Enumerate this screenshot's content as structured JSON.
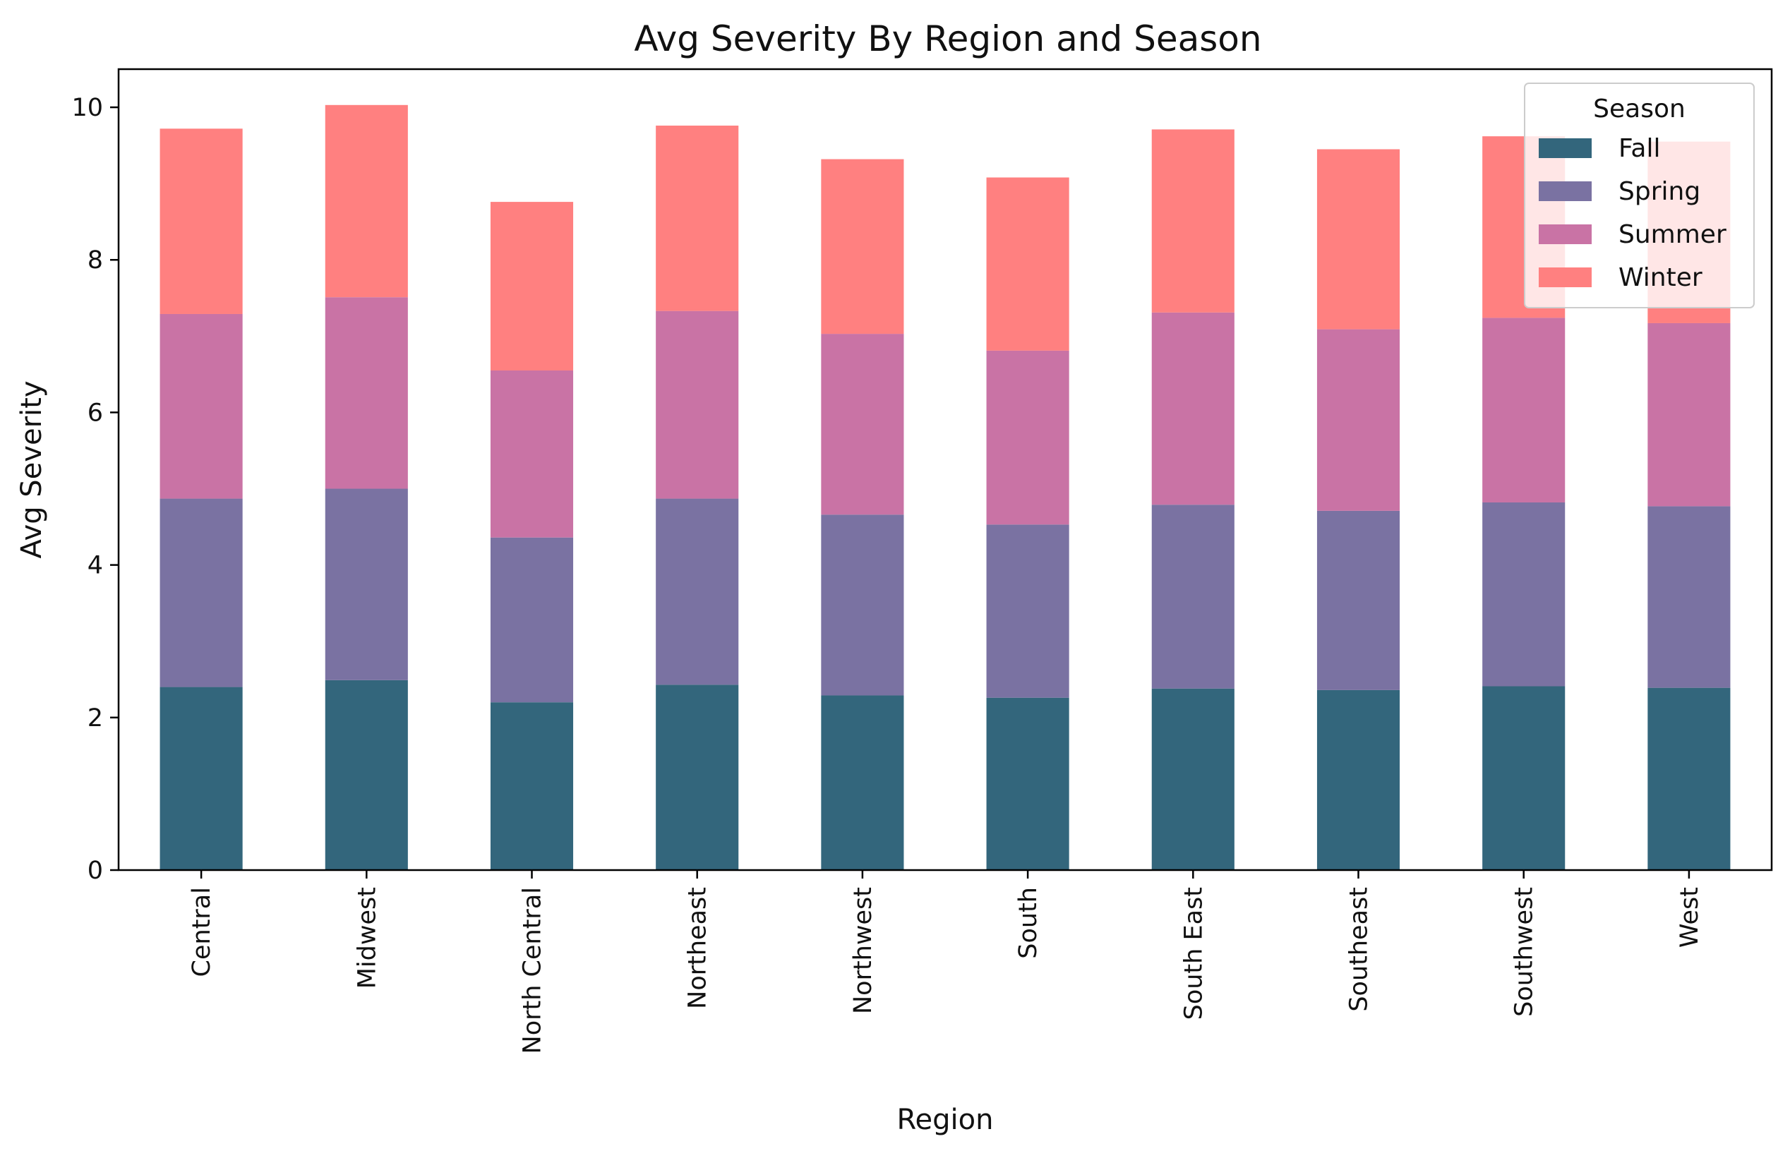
{
  "chart_data": {
    "type": "bar",
    "stacked": true,
    "title": "Avg Severity By Region and Season",
    "xlabel": "Region",
    "ylabel": "Avg Severity",
    "ylim": [
      0,
      10.5
    ],
    "yticks": [
      0,
      2,
      4,
      6,
      8,
      10
    ],
    "grid": false,
    "legend": {
      "title": "Season",
      "position": "top-right"
    },
    "categories": [
      "Central",
      "Midwest",
      "North Central",
      "Northeast",
      "Northwest",
      "South",
      "South East",
      "Southeast",
      "Southwest",
      "West"
    ],
    "series": [
      {
        "name": "Fall",
        "color": "#33667c",
        "values": [
          2.4,
          2.49,
          2.2,
          2.43,
          2.29,
          2.26,
          2.38,
          2.36,
          2.41,
          2.39
        ]
      },
      {
        "name": "Spring",
        "color": "#7a72a2",
        "values": [
          2.47,
          2.51,
          2.16,
          2.44,
          2.37,
          2.27,
          2.41,
          2.35,
          2.41,
          2.38
        ]
      },
      {
        "name": "Summer",
        "color": "#c973a5",
        "values": [
          2.42,
          2.51,
          2.19,
          2.46,
          2.37,
          2.28,
          2.52,
          2.38,
          2.42,
          2.4
        ]
      },
      {
        "name": "Winter",
        "color": "#ff8080",
        "values": [
          2.43,
          2.52,
          2.21,
          2.43,
          2.29,
          2.27,
          2.4,
          2.36,
          2.38,
          2.38
        ]
      }
    ]
  }
}
